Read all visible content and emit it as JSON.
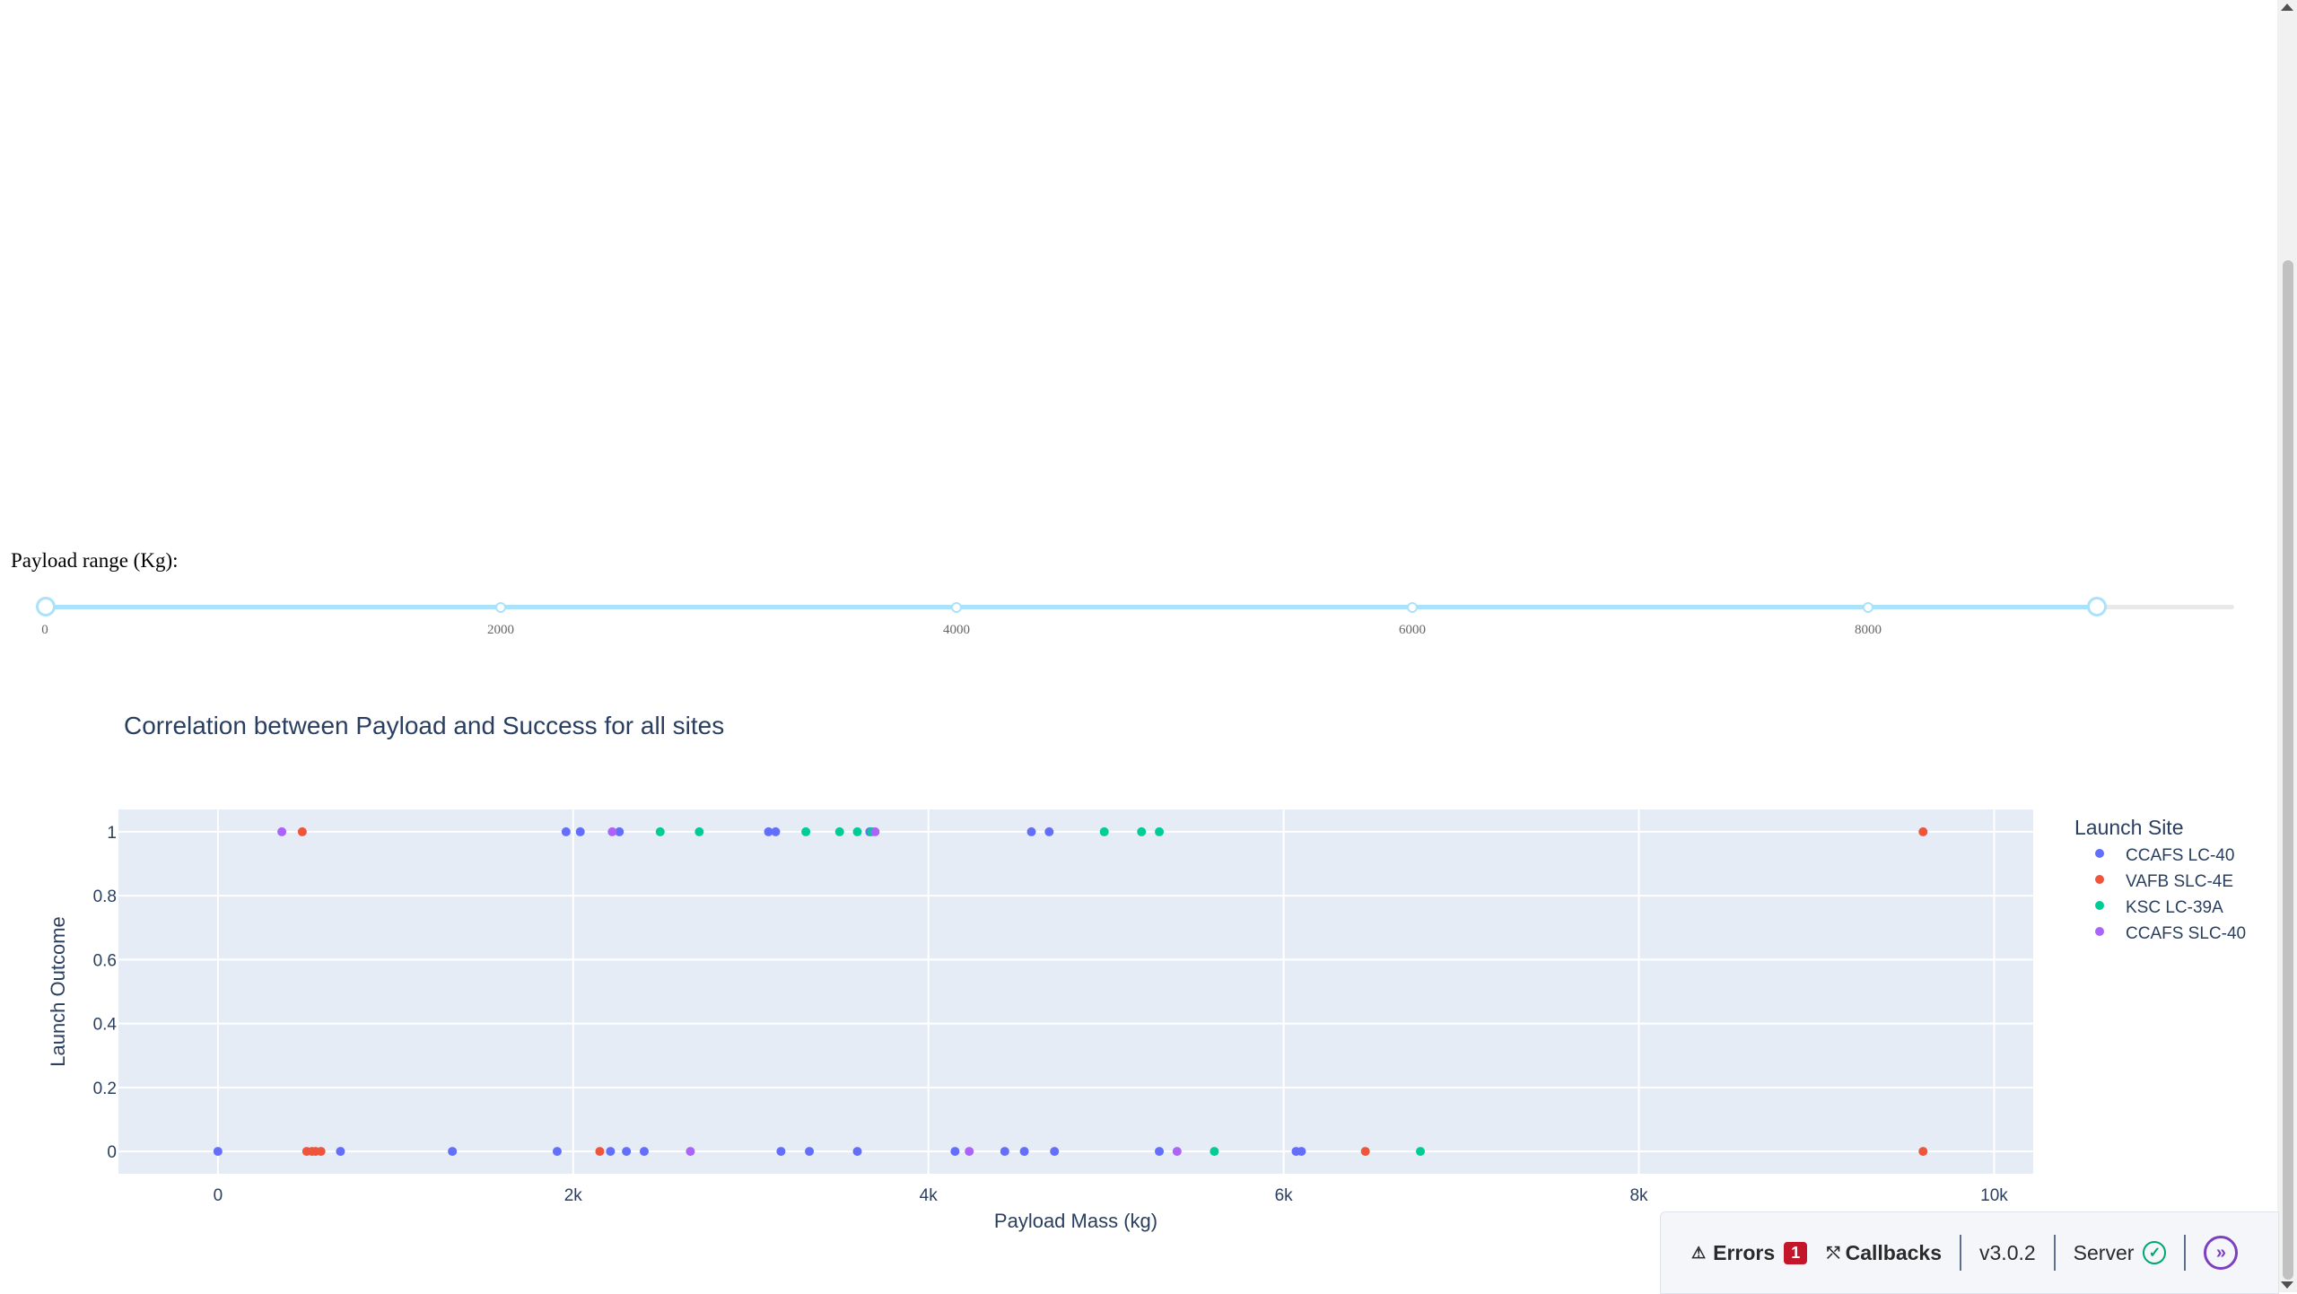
{
  "slider": {
    "label": "Payload range (Kg):",
    "min": 0,
    "max": 10000,
    "marks": [
      "0",
      "2000",
      "4000",
      "6000",
      "8000"
    ],
    "value": [
      0,
      9000
    ]
  },
  "chart_data": {
    "type": "scatter",
    "title": "Correlation between Payload and Success for all sites",
    "xlabel": "Payload Mass (kg)",
    "ylabel": "Launch Outcome",
    "xlim": [
      -560,
      10220
    ],
    "ylim": [
      -0.07,
      1.07
    ],
    "x_ticks": [
      {
        "value": 0,
        "label": "0"
      },
      {
        "value": 2000,
        "label": "2k"
      },
      {
        "value": 4000,
        "label": "4k"
      },
      {
        "value": 6000,
        "label": "6k"
      },
      {
        "value": 8000,
        "label": "8k"
      },
      {
        "value": 10000,
        "label": "10k"
      }
    ],
    "y_ticks": [
      {
        "value": 0,
        "label": "0"
      },
      {
        "value": 0.2,
        "label": "0.2"
      },
      {
        "value": 0.4,
        "label": "0.4"
      },
      {
        "value": 0.6,
        "label": "0.6"
      },
      {
        "value": 0.8,
        "label": "0.8"
      },
      {
        "value": 1,
        "label": "1"
      }
    ],
    "grid": true,
    "legend_title": "Launch Site",
    "legend_position": "right",
    "series": [
      {
        "name": "CCAFS LC-40",
        "color": "#636efa",
        "points": [
          [
            0,
            0
          ],
          [
            690,
            0
          ],
          [
            1320,
            0
          ],
          [
            1910,
            0
          ],
          [
            2210,
            0
          ],
          [
            2300,
            0
          ],
          [
            2400,
            0
          ],
          [
            3170,
            0
          ],
          [
            3330,
            0
          ],
          [
            3600,
            0
          ],
          [
            4150,
            0
          ],
          [
            4430,
            0
          ],
          [
            4540,
            0
          ],
          [
            4710,
            0
          ],
          [
            5300,
            0
          ],
          [
            6070,
            0
          ],
          [
            6100,
            0
          ],
          [
            1960,
            1
          ],
          [
            2040,
            1
          ],
          [
            2260,
            1
          ],
          [
            3100,
            1
          ],
          [
            3140,
            1
          ],
          [
            3670,
            1
          ],
          [
            4580,
            1
          ],
          [
            4680,
            1
          ]
        ]
      },
      {
        "name": "VAFB SLC-4E",
        "color": "#ef553b",
        "points": [
          [
            500,
            0
          ],
          [
            530,
            0
          ],
          [
            550,
            0
          ],
          [
            580,
            0
          ],
          [
            2150,
            0
          ],
          [
            6460,
            0
          ],
          [
            9600,
            0
          ],
          [
            475,
            1
          ],
          [
            9600,
            1
          ]
        ]
      },
      {
        "name": "KSC LC-39A",
        "color": "#00cc96",
        "points": [
          [
            5610,
            0
          ],
          [
            6770,
            0
          ],
          [
            2490,
            1
          ],
          [
            2710,
            1
          ],
          [
            3310,
            1
          ],
          [
            3500,
            1
          ],
          [
            3600,
            1
          ],
          [
            3680,
            1
          ],
          [
            4990,
            1
          ],
          [
            5200,
            1
          ],
          [
            5300,
            1
          ]
        ]
      },
      {
        "name": "CCAFS SLC-40",
        "color": "#ab63fa",
        "points": [
          [
            2660,
            0
          ],
          [
            4230,
            0
          ],
          [
            5400,
            0
          ],
          [
            360,
            1
          ],
          [
            2220,
            1
          ],
          [
            3700,
            1
          ]
        ]
      }
    ]
  },
  "devtools": {
    "errors_label": "Errors",
    "errors_count": "1",
    "callbacks_label": "Callbacks",
    "version": "v3.0.2",
    "server_label": "Server"
  }
}
